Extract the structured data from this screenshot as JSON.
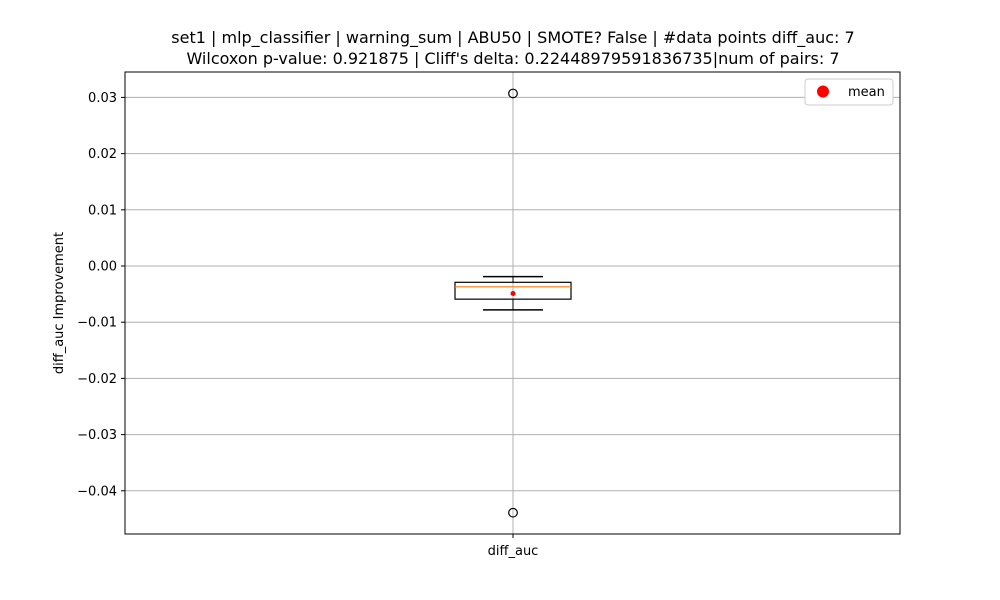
{
  "chart_data": {
    "type": "box",
    "title_line1": "set1 | mlp_classifier | warning_sum | ABU50 | SMOTE? False | #data points diff_auc: 7",
    "title_line2": "Wilcoxon p-value: 0.921875 | Cliff's delta: 0.22448979591836735|num of pairs: 7",
    "xlabel": "",
    "ylabel": "diff_auc Improvement",
    "categories": [
      "diff_auc"
    ],
    "ylim": [
      -0.048,
      0.0345
    ],
    "yticks": [
      0.03,
      0.02,
      0.01,
      0.0,
      -0.01,
      -0.02,
      -0.03,
      -0.04
    ],
    "ytick_labels": [
      "0.03",
      "0.02",
      "0.01",
      "0.00",
      "−0.01",
      "−0.02",
      "−0.03",
      "−0.04"
    ],
    "grid": true,
    "legend": {
      "placement": "top-right",
      "entries": [
        {
          "label": "mean",
          "color": "#ff0000"
        }
      ]
    },
    "box": {
      "whisker_low": -0.0078,
      "q1": -0.0059,
      "median": -0.0037,
      "q3": -0.0029,
      "whisker_high": -0.0019,
      "mean": -0.0049,
      "outliers": [
        0.0307,
        -0.0439
      ]
    },
    "colors": {
      "median": "#ff7f0e",
      "mean": "#ff0000",
      "grid": "#b0b0b0",
      "box": "#000000"
    }
  }
}
